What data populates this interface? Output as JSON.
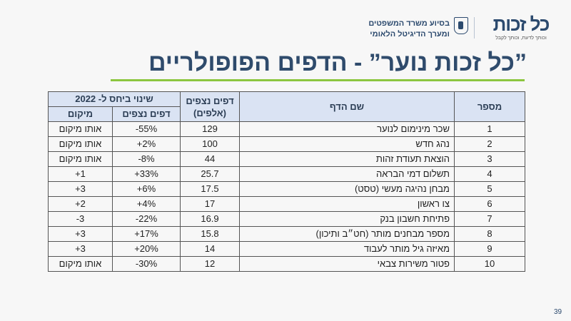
{
  "header": {
    "logo_text": "כל זכות",
    "logo_tagline": "וכותך לדעת, וכותך לקבל",
    "ministry_line1": "בסיוע משרד המשפטים",
    "ministry_line2": "ומערך הדיגיטל הלאומי"
  },
  "title": "”כל זכות נוער” - הדפים הפופולריים",
  "table": {
    "headers": {
      "number": "מספר",
      "page_name": "שם הדף",
      "views": "דפים נצפים (אלפים)",
      "change_group": "שינוי ביחס ל- 2022",
      "change_views": "דפים נצפים",
      "change_rank": "מיקום"
    },
    "rows": [
      {
        "number": "1",
        "name": "שכר מינימום לנוער",
        "views": "129",
        "change": "-55%",
        "rank": "אותו מיקום"
      },
      {
        "number": "2",
        "name": "נהג חדש",
        "views": "100",
        "change": "+2%",
        "rank": "אותו מיקום"
      },
      {
        "number": "3",
        "name": "הוצאת תעודת זהות",
        "views": "44",
        "change": "-8%",
        "rank": "אותו מיקום"
      },
      {
        "number": "4",
        "name": "תשלום דמי הבראה",
        "views": "25.7",
        "change": "+33%",
        "rank": "+1"
      },
      {
        "number": "5",
        "name": "מבחן נהיגה מעשי (טסט)",
        "views": "17.5",
        "change": "+6%",
        "rank": "+3"
      },
      {
        "number": "6",
        "name": "צו ראשון",
        "views": "17",
        "change": "+4%",
        "rank": "+2"
      },
      {
        "number": "7",
        "name": "פתיחת חשבון בנק",
        "views": "16.9",
        "change": "-22%",
        "rank": "-3"
      },
      {
        "number": "8",
        "name": "מספר מבחנים מותר (חט״ב ותיכון)",
        "views": "15.8",
        "change": "+17%",
        "rank": "+3"
      },
      {
        "number": "9",
        "name": "מאיזה גיל מותר לעבוד",
        "views": "14",
        "change": "+20%",
        "rank": "+3"
      },
      {
        "number": "10",
        "name": "פטור משירות צבאי",
        "views": "12",
        "change": "-30%",
        "rank": "אותו מיקום"
      }
    ]
  },
  "page_number": "39",
  "colors": {
    "title": "#2f4b6c",
    "accent_line": "#8cc63f",
    "header_fill": "#dae3f3"
  }
}
